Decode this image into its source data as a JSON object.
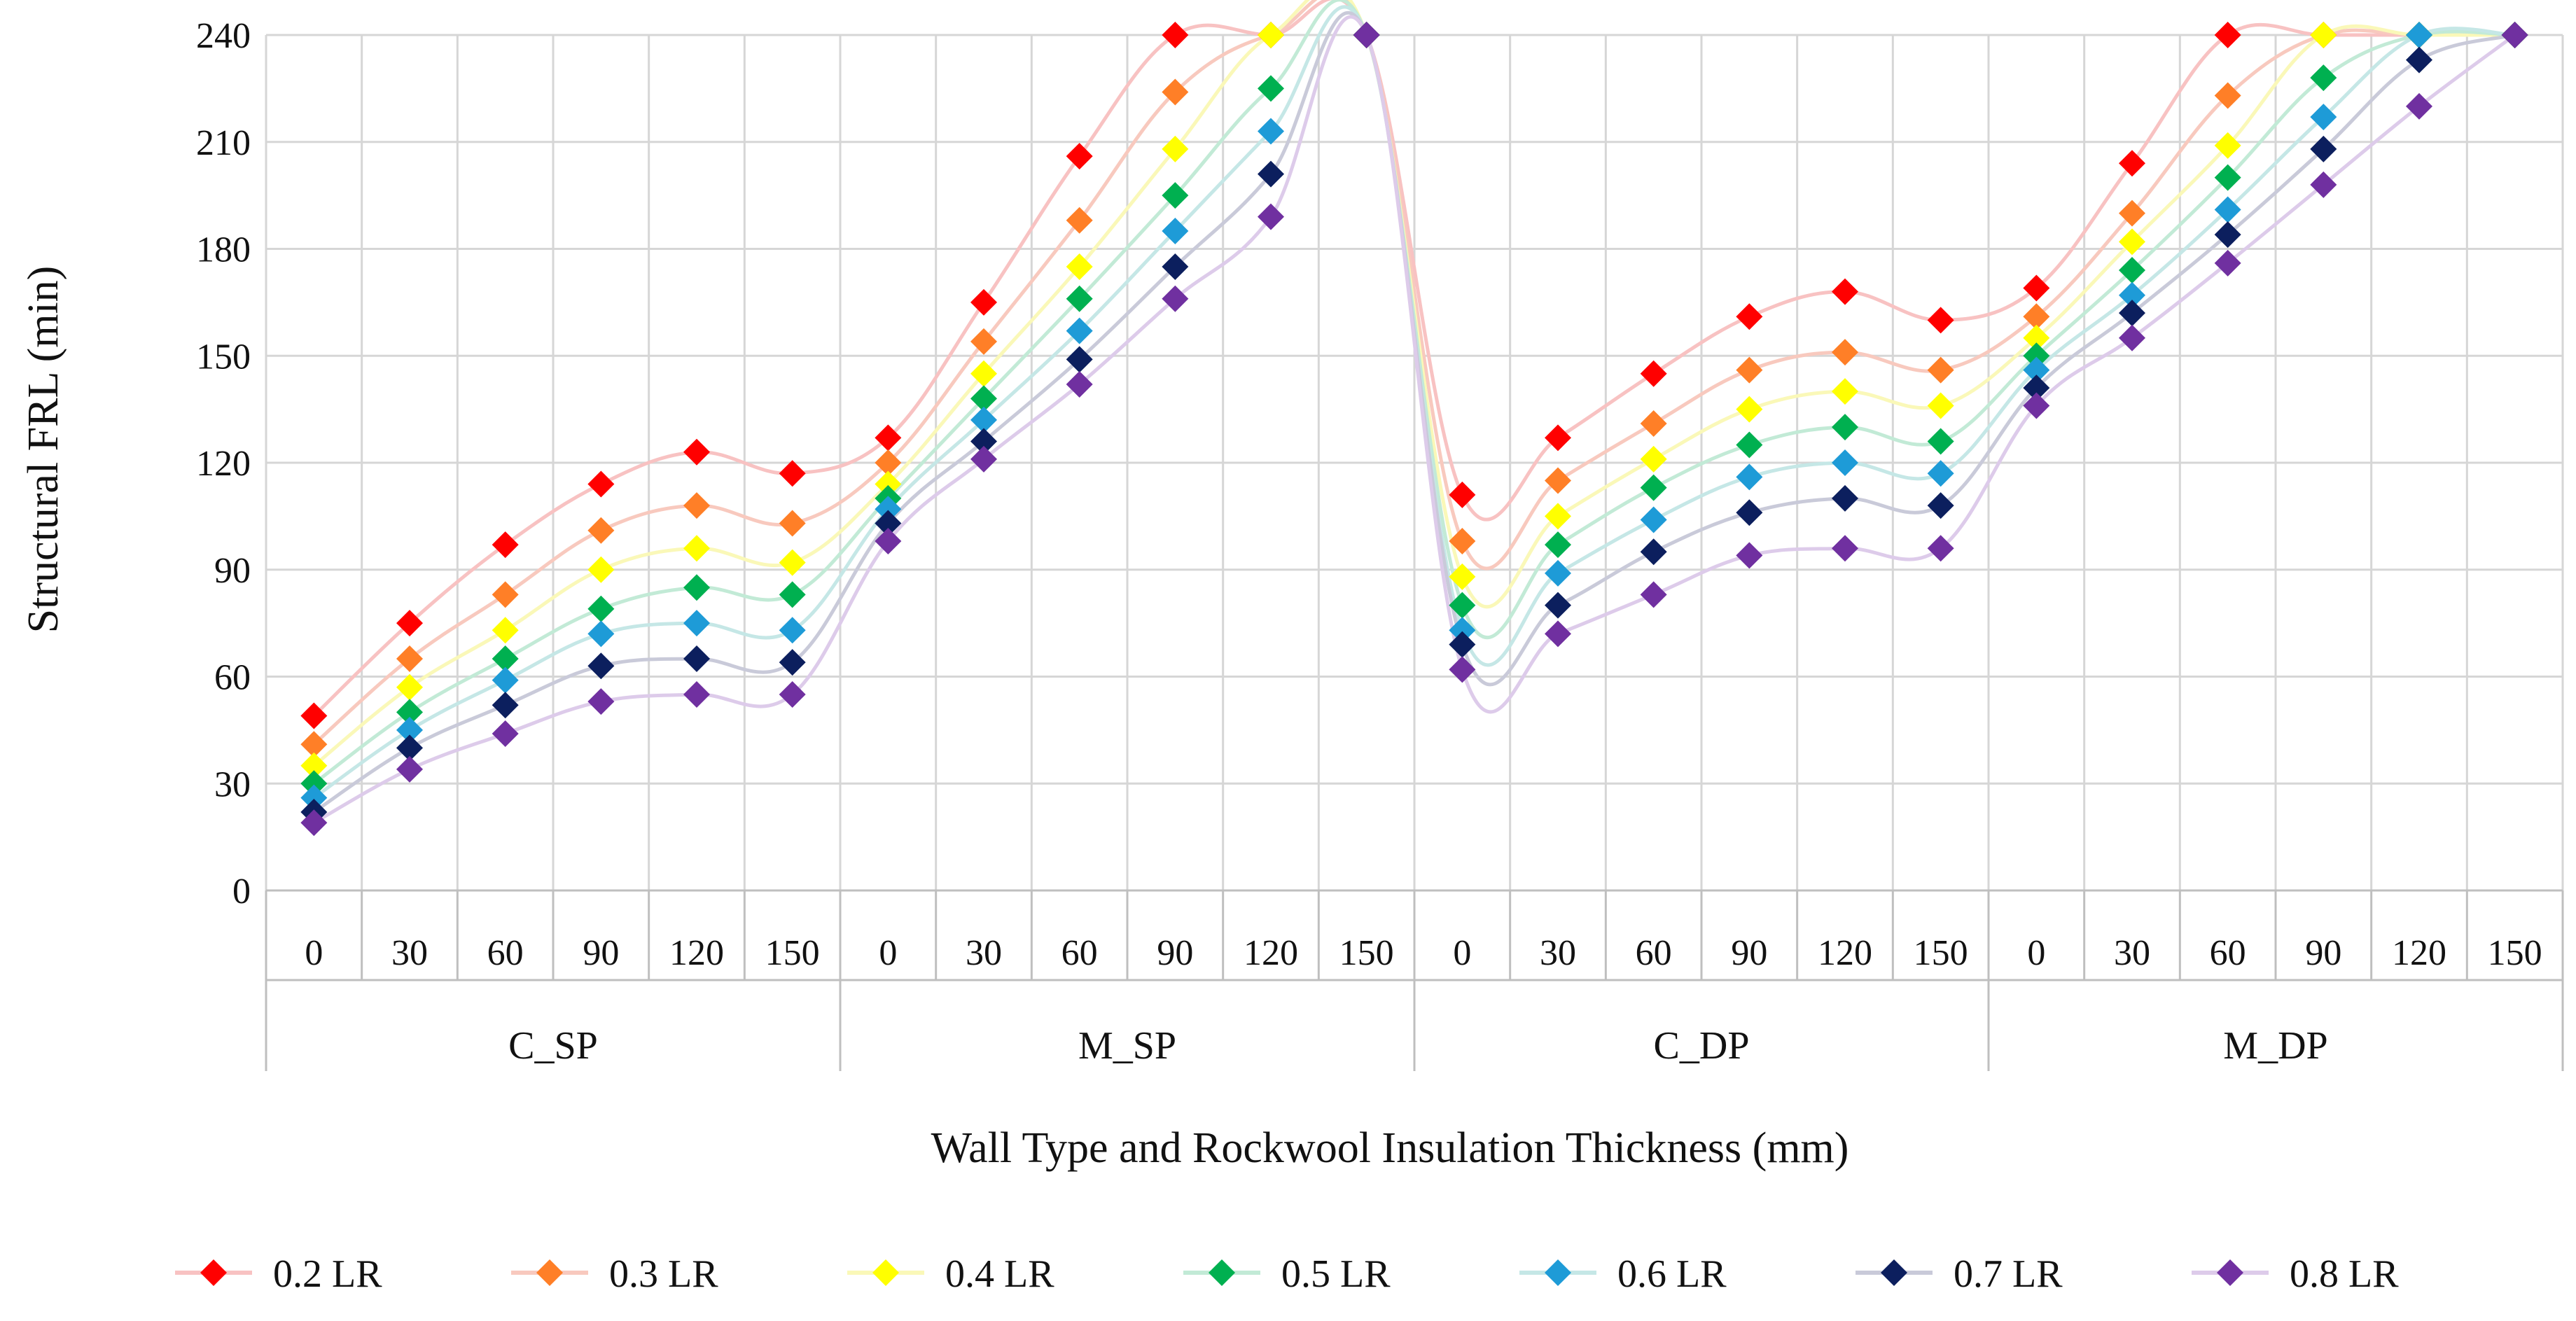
{
  "chart_data": {
    "type": "line",
    "title": "",
    "xlabel": "Wall Type and Rockwool Insulation Thickness (mm)",
    "ylabel": "Structural FRL (min)",
    "ylim": [
      0,
      240
    ],
    "yticks": [
      "0",
      "30",
      "60",
      "90",
      "120",
      "150",
      "180",
      "210",
      "240"
    ],
    "grid": true,
    "legend_position": "bottom",
    "groups": [
      "C_SP",
      "M_SP",
      "C_DP",
      "M_DP"
    ],
    "categories": [
      "0",
      "30",
      "60",
      "90",
      "120",
      "150",
      "0",
      "30",
      "60",
      "90",
      "120",
      "150",
      "0",
      "30",
      "60",
      "90",
      "120",
      "150",
      "0",
      "30",
      "60",
      "90",
      "120",
      "150"
    ],
    "series": [
      {
        "name": "0.2 LR",
        "marker_color": "#FF0000",
        "line_color": "#F8C2C2",
        "values": [
          49,
          75,
          97,
          114,
          123,
          117,
          127,
          165,
          206,
          240,
          240,
          240,
          111,
          127,
          145,
          161,
          168,
          160,
          169,
          204,
          240,
          240,
          240,
          240
        ]
      },
      {
        "name": "0.3 LR",
        "marker_color": "#FF7F27",
        "line_color": "#F8C9BE",
        "values": [
          41,
          65,
          83,
          101,
          108,
          103,
          120,
          154,
          188,
          224,
          240,
          240,
          98,
          115,
          131,
          146,
          151,
          146,
          161,
          190,
          223,
          240,
          240,
          240
        ]
      },
      {
        "name": "0.4 LR",
        "marker_color": "#FFFF00",
        "line_color": "#FAF8B8",
        "values": [
          35,
          57,
          73,
          90,
          96,
          92,
          114,
          145,
          175,
          208,
          240,
          240,
          88,
          105,
          121,
          135,
          140,
          136,
          155,
          182,
          209,
          240,
          240,
          240
        ]
      },
      {
        "name": "0.5 LR",
        "marker_color": "#00B050",
        "line_color": "#C2EAD6",
        "values": [
          30,
          50,
          65,
          79,
          85,
          83,
          110,
          138,
          166,
          195,
          225,
          240,
          80,
          97,
          113,
          125,
          130,
          126,
          150,
          174,
          200,
          228,
          240,
          240
        ]
      },
      {
        "name": "0.6 LR",
        "marker_color": "#1E9BD7",
        "line_color": "#C5E7E6",
        "values": [
          26,
          45,
          59,
          72,
          75,
          73,
          107,
          132,
          157,
          185,
          213,
          240,
          73,
          89,
          104,
          116,
          120,
          117,
          146,
          167,
          191,
          217,
          240,
          240
        ]
      },
      {
        "name": "0.7 LR",
        "marker_color": "#0C1F5E",
        "line_color": "#C9CAD9",
        "values": [
          22,
          40,
          52,
          63,
          65,
          64,
          103,
          126,
          149,
          175,
          201,
          240,
          69,
          80,
          95,
          106,
          110,
          108,
          141,
          162,
          184,
          208,
          233,
          240
        ]
      },
      {
        "name": "0.8 LR",
        "marker_color": "#7030A0",
        "line_color": "#DDCBEA",
        "values": [
          19,
          34,
          44,
          53,
          55,
          55,
          98,
          121,
          142,
          166,
          189,
          240,
          62,
          72,
          83,
          94,
          96,
          96,
          136,
          155,
          176,
          198,
          220,
          240
        ]
      }
    ]
  }
}
